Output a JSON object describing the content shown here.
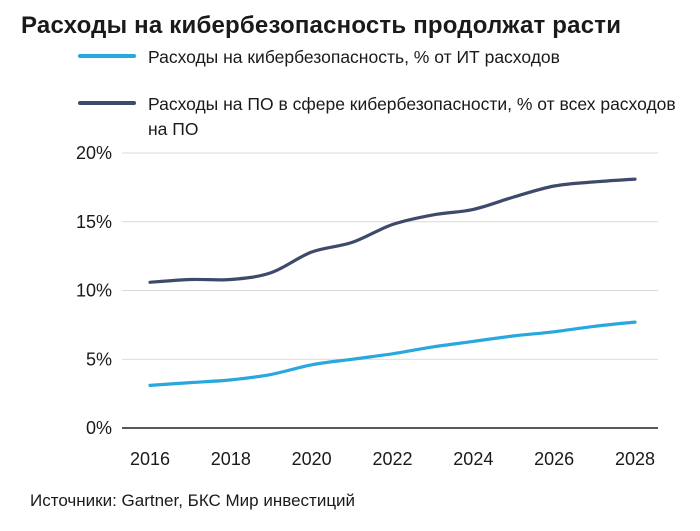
{
  "title": "Расходы на кибербезопасность продолжат расти",
  "source": "Источники: Gartner, БКС Мир инвестиций",
  "colors": {
    "series1": "#29a8de",
    "series2": "#3e4a6b",
    "grid": "#d9d9d9",
    "axis": "#222222"
  },
  "chart_data": {
    "type": "line",
    "x": [
      2016,
      2017,
      2018,
      2019,
      2020,
      2021,
      2022,
      2023,
      2024,
      2025,
      2026,
      2027,
      2028
    ],
    "xticks": [
      2016,
      2018,
      2020,
      2022,
      2024,
      2026,
      2028
    ],
    "xtick_labels": [
      "2016",
      "2018",
      "2020",
      "2022",
      "2024",
      "2026",
      "2028"
    ],
    "yticks": [
      0,
      5,
      10,
      15,
      20
    ],
    "ytick_labels": [
      "0%",
      "5%",
      "10%",
      "15%",
      "20%"
    ],
    "ylim": [
      0,
      20
    ],
    "xlim": [
      2016,
      2028
    ],
    "grid": true,
    "legend_position": "top",
    "series": [
      {
        "name": "Расходы на кибербезопасность, % от ИТ расходов",
        "color": "#29a8de",
        "values": [
          3.1,
          3.3,
          3.5,
          3.9,
          4.6,
          5.0,
          5.4,
          5.9,
          6.3,
          6.7,
          7.0,
          7.4,
          7.7
        ]
      },
      {
        "name": "Расходы на ПО в сфере кибербезопасности, % от всех расходов на ПО",
        "color": "#3e4a6b",
        "values": [
          10.6,
          10.8,
          10.8,
          11.3,
          12.8,
          13.5,
          14.8,
          15.5,
          15.9,
          16.8,
          17.6,
          17.9,
          18.1
        ]
      }
    ]
  }
}
